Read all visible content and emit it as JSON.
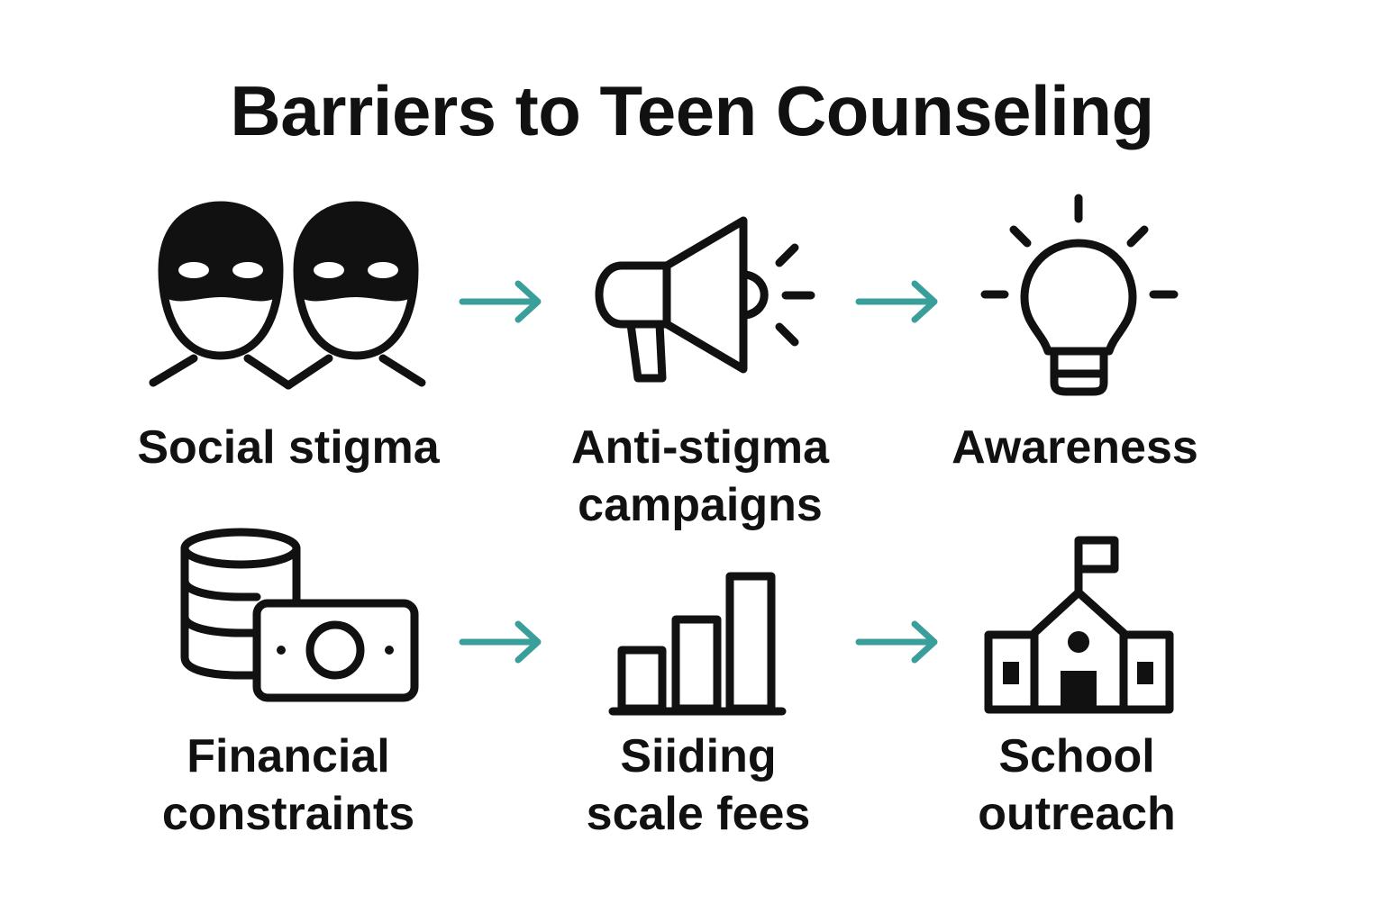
{
  "title": "Barriers to Teen Counseling",
  "accent_color": "#3a9e9a",
  "rows": [
    {
      "barrier": {
        "icon": "masks-icon",
        "lines": [
          "Social stigma"
        ]
      },
      "solution": {
        "icon": "megaphone-icon",
        "lines": [
          "Anti-stigma",
          "campaigns"
        ]
      },
      "outcome": {
        "icon": "lightbulb-icon",
        "lines": [
          "Awareness"
        ]
      }
    },
    {
      "barrier": {
        "icon": "money-stack-icon",
        "lines": [
          "Financial",
          "constraints"
        ]
      },
      "solution": {
        "icon": "bar-chart-icon",
        "lines": [
          "Siiding",
          "scale fees"
        ]
      },
      "outcome": {
        "icon": "school-icon",
        "lines": [
          "School",
          "outreach"
        ]
      }
    }
  ]
}
